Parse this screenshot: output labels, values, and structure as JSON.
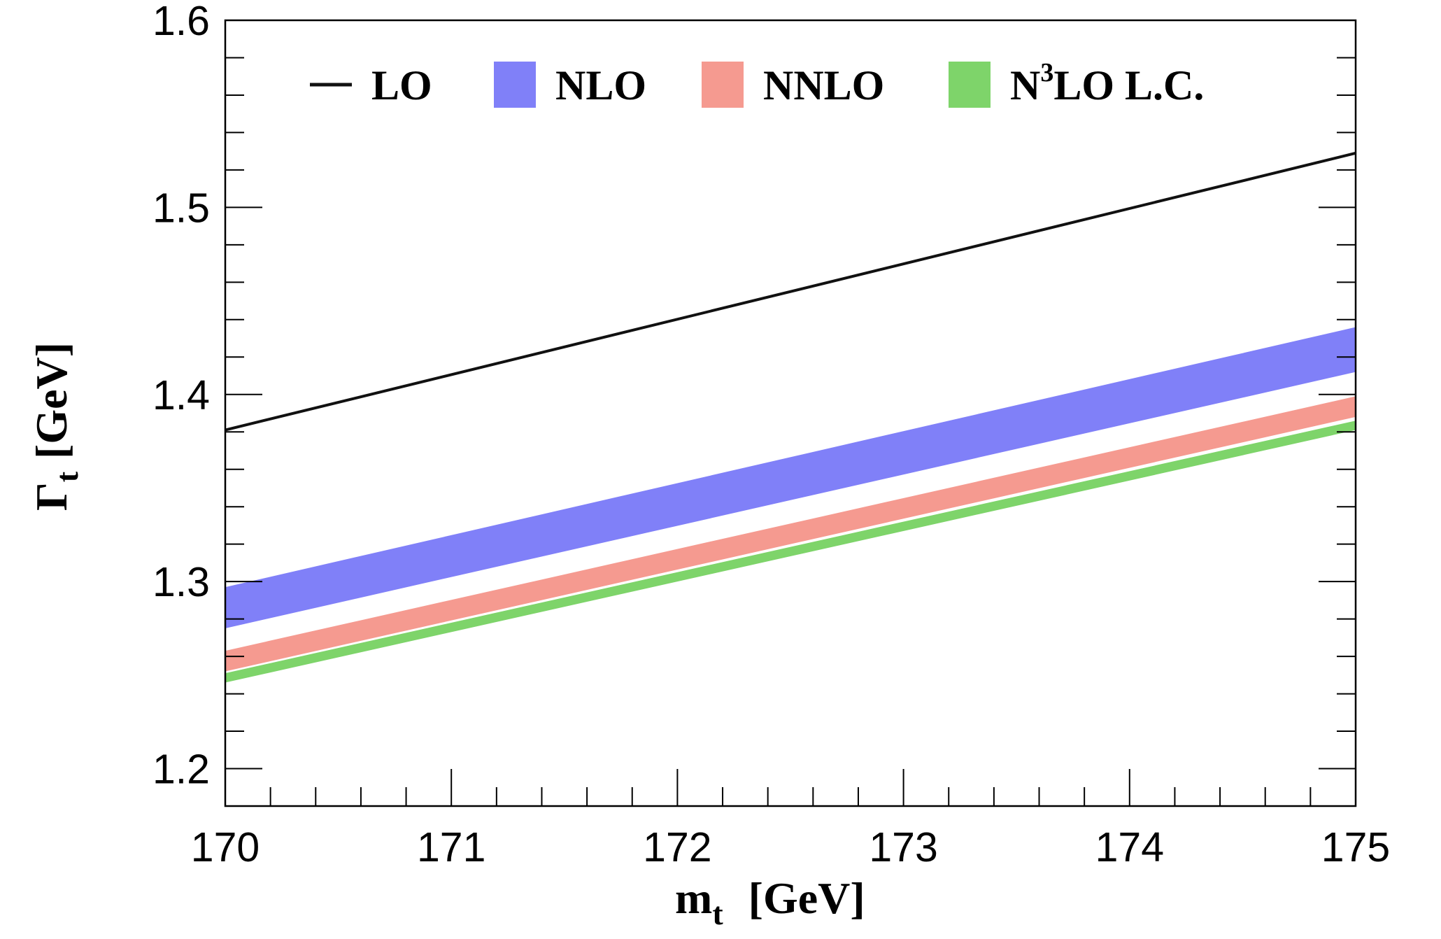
{
  "chart_data": {
    "type": "area",
    "title": "",
    "xlabel": "m",
    "xlabel_sub": "t",
    "xlabel_unit": "[GeV]",
    "ylabel": "Γ",
    "ylabel_sub": "t",
    "ylabel_unit": "[GeV]",
    "xlim": [
      170,
      175
    ],
    "ylim": [
      1.18,
      1.6
    ],
    "xticks": [
      "170",
      "171",
      "172",
      "173",
      "174",
      "175"
    ],
    "yticks": [
      "1.2",
      "1.3",
      "1.4",
      "1.5",
      "1.6"
    ],
    "grid": false,
    "legend_placement": "top",
    "series": [
      {
        "name": "LO",
        "kind": "line",
        "color": "#111111",
        "x": [
          170,
          175
        ],
        "y": [
          1.381,
          1.529
        ]
      },
      {
        "name": "NLO",
        "kind": "band",
        "color": "#8080f8",
        "x": [
          170,
          175
        ],
        "upper": [
          1.297,
          1.436
        ],
        "lower": [
          1.275,
          1.412
        ]
      },
      {
        "name": "NNLO",
        "kind": "band",
        "color": "#f59a90",
        "x": [
          170,
          175
        ],
        "upper": [
          1.263,
          1.399
        ],
        "lower": [
          1.252,
          1.388
        ]
      },
      {
        "name": "N3LO L.C.",
        "label_main": "N",
        "label_sup": "3",
        "label_rest": "LO L.C.",
        "kind": "band",
        "color": "#7ed46a",
        "x": [
          170,
          175
        ],
        "upper": [
          1.251,
          1.386
        ],
        "lower": [
          1.246,
          1.381
        ]
      }
    ]
  }
}
